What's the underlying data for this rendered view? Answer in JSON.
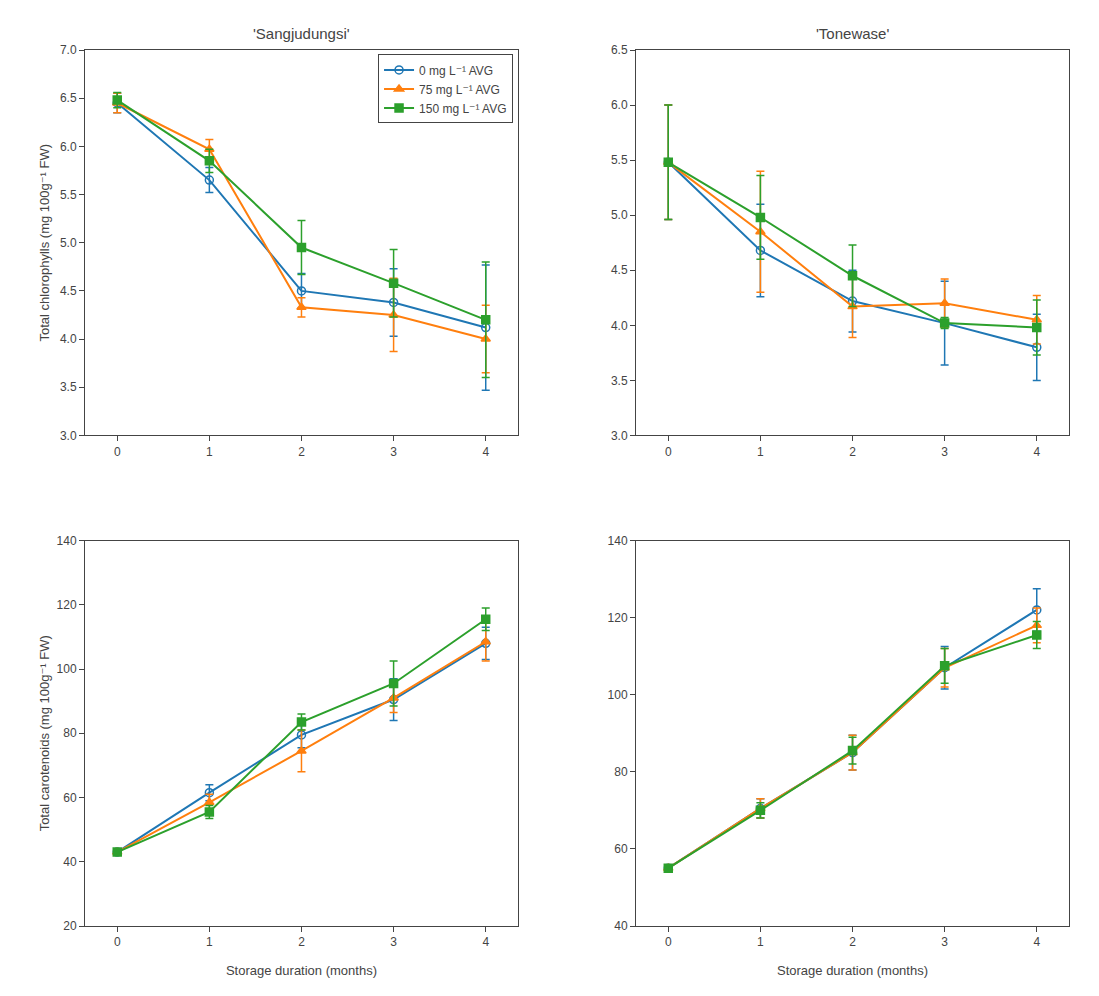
{
  "chart_data": [
    {
      "type": "line",
      "title": "'Sangjudungsi'",
      "ylabel": "Total chlorophylls (mg 100g⁻¹ FW)",
      "x": [
        0,
        1,
        2,
        3,
        4
      ],
      "series": [
        {
          "name": "0 mg L⁻¹ AVG",
          "marker": "circle-open",
          "values": [
            6.45,
            5.65,
            4.5,
            4.38,
            4.12
          ],
          "errors": [
            0.1,
            0.13,
            0.18,
            0.35,
            0.65
          ]
        },
        {
          "name": "75 mg L⁻¹ AVG",
          "marker": "triangle-up",
          "values": [
            6.45,
            5.97,
            4.33,
            4.25,
            4.0
          ],
          "errors": [
            0.1,
            0.1,
            0.1,
            0.38,
            0.35
          ]
        },
        {
          "name": "150 mg L⁻¹ AVG",
          "marker": "square",
          "values": [
            6.48,
            5.85,
            4.95,
            4.58,
            4.2
          ],
          "errors": [
            0.08,
            0.12,
            0.28,
            0.35,
            0.6
          ]
        }
      ],
      "xlim": [
        -0.35,
        4.35
      ],
      "xticks": [
        0,
        1,
        2,
        3,
        4
      ],
      "ylim": [
        3.0,
        7.0
      ],
      "yticks": [
        {
          "value": 3,
          "label": "3.0"
        },
        3.5,
        {
          "value": 4,
          "label": "4.0"
        },
        4.5,
        {
          "value": 5,
          "label": "5.0"
        },
        5.5,
        {
          "value": 6,
          "label": "6.0"
        },
        6.5,
        {
          "value": 7,
          "label": "7.0"
        }
      ],
      "grid": false,
      "legend": "upper right"
    },
    {
      "type": "line",
      "title": "'Tonewase'",
      "x": [
        0,
        1,
        2,
        3,
        4
      ],
      "series": [
        {
          "marker": "circle-open",
          "values": [
            5.48,
            4.68,
            4.22,
            4.02,
            3.8
          ],
          "errors": [
            0.52,
            0.42,
            0.28,
            0.38,
            0.3
          ]
        },
        {
          "marker": "triangle-up",
          "values": [
            5.48,
            4.85,
            4.17,
            4.2,
            4.05
          ],
          "errors": [
            0.52,
            0.55,
            0.28,
            0.22,
            0.22
          ]
        },
        {
          "marker": "square",
          "values": [
            5.48,
            4.98,
            4.45,
            4.02,
            3.98
          ],
          "errors": [
            0.52,
            0.38,
            0.28,
            0.05,
            0.25
          ]
        }
      ],
      "xlim": [
        -0.35,
        4.35
      ],
      "xticks": [
        0,
        1,
        2,
        3,
        4
      ],
      "ylim": [
        3.0,
        6.5
      ],
      "yticks": [
        {
          "value": 3,
          "label": "3.0"
        },
        3.5,
        {
          "value": 4,
          "label": "4.0"
        },
        4.5,
        {
          "value": 5,
          "label": "5.0"
        },
        5.5,
        {
          "value": 6,
          "label": "6.0"
        },
        6.5
      ],
      "grid": false
    },
    {
      "type": "line",
      "ylabel": "Total carotenoids (mg 100g⁻¹ FW)",
      "xlabel": "Storage duration (months)",
      "x": [
        0,
        1,
        2,
        3,
        4
      ],
      "series": [
        {
          "marker": "circle-open",
          "values": [
            43.0,
            61.5,
            79.5,
            90.5,
            108.0
          ],
          "errors": [
            0.8,
            2.5,
            4.0,
            6.5,
            5.0
          ]
        },
        {
          "marker": "triangle-up",
          "values": [
            43.0,
            58.5,
            74.5,
            91.0,
            108.5
          ],
          "errors": [
            0.8,
            2.5,
            6.5,
            4.5,
            6.0
          ]
        },
        {
          "marker": "square",
          "values": [
            43.0,
            55.5,
            83.5,
            95.5,
            115.5
          ],
          "errors": [
            0.8,
            2.0,
            2.5,
            7.0,
            3.5
          ]
        }
      ],
      "xlim": [
        -0.35,
        4.35
      ],
      "xticks": [
        0,
        1,
        2,
        3,
        4
      ],
      "ylim": [
        20,
        140
      ],
      "yticks": [
        20,
        40,
        60,
        80,
        100,
        120,
        140
      ],
      "grid": false
    },
    {
      "type": "line",
      "xlabel": "Storage duration (months)",
      "x": [
        0,
        1,
        2,
        3,
        4
      ],
      "series": [
        {
          "marker": "circle-open",
          "values": [
            55.0,
            70.5,
            85.0,
            107.0,
            122.0
          ],
          "errors": [
            0.8,
            2.5,
            4.5,
            5.5,
            5.5
          ]
        },
        {
          "marker": "triangle-up",
          "values": [
            55.0,
            70.5,
            85.0,
            107.0,
            118.0
          ],
          "errors": [
            0.8,
            2.5,
            4.5,
            5.0,
            4.5
          ]
        },
        {
          "marker": "square",
          "values": [
            55.0,
            70.0,
            85.5,
            107.5,
            115.5
          ],
          "errors": [
            0.8,
            2.0,
            3.5,
            4.5,
            3.5
          ]
        }
      ],
      "xlim": [
        -0.35,
        4.35
      ],
      "xticks": [
        0,
        1,
        2,
        3,
        4
      ],
      "ylim": [
        40,
        140
      ],
      "yticks": [
        40,
        60,
        80,
        100,
        120,
        140
      ],
      "grid": false
    }
  ]
}
